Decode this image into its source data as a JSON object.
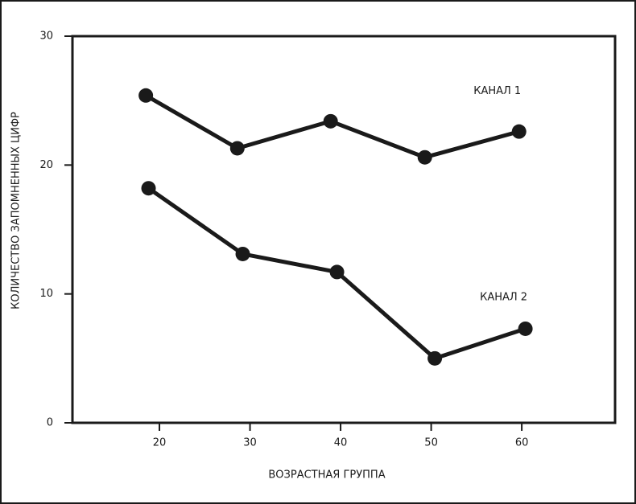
{
  "chart_data": {
    "type": "line",
    "x_label": "ВОЗРАСТНАЯ ГРУППА",
    "y_label": "КОЛИЧЕСТВО ЗАПОМНЕННЫХ ЦИФР",
    "series": [
      {
        "name": "КАНАЛ 1",
        "color": "#1a1a1a",
        "x": [
          18.5,
          28.6,
          38.9,
          49.3,
          59.7
        ],
        "values": [
          25.4,
          21.3,
          23.4,
          20.6,
          22.6
        ]
      },
      {
        "name": "КАНАЛ 2",
        "color": "#1a1a1a",
        "x": [
          18.8,
          29.2,
          39.6,
          50.4,
          60.4
        ],
        "values": [
          18.2,
          13.1,
          11.7,
          5.0,
          7.3
        ]
      }
    ],
    "xlim": [
      10.4,
      70.3
    ],
    "xticks": [
      20,
      30,
      40,
      50,
      60
    ],
    "ylim": [
      0,
      30
    ],
    "yticks": [
      0,
      10,
      20,
      30
    ]
  }
}
